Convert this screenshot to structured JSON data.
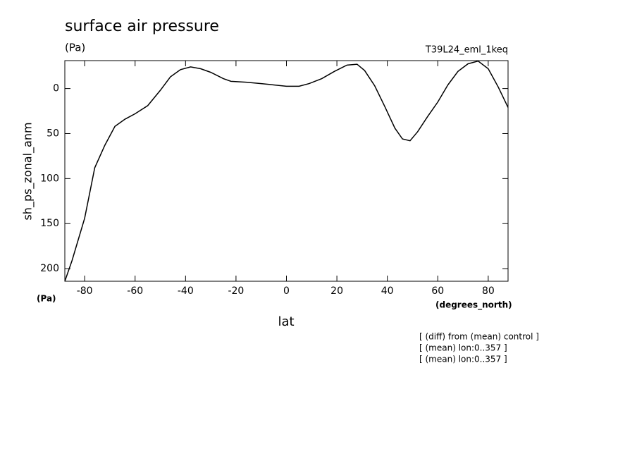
{
  "chart_data": {
    "type": "line",
    "title": "surface air pressure",
    "units_label": "(Pa)",
    "run_label": "T39L24_eml_1keq",
    "y_label": "sh_ps_zonal_anm",
    "y_units": "(Pa)",
    "x_units": "(degrees_north)",
    "x_label": "lat",
    "notes": [
      "[ (diff) from (mean) control ]",
      "[ (mean) lon:0..357 ]",
      "[ (mean) lon:0..357 ]"
    ],
    "x": [
      -87.86,
      -85,
      -80,
      -76,
      -72,
      -68,
      -64,
      -60,
      -55,
      -50,
      -46,
      -42,
      -38,
      -34,
      -30,
      -25,
      -22,
      -16,
      -10,
      -5,
      0,
      5,
      9,
      14,
      19,
      24,
      28,
      31,
      35,
      39,
      43,
      46,
      49,
      52,
      56,
      60,
      64,
      68,
      72,
      76,
      80,
      84,
      87.86
    ],
    "series": [
      {
        "name": "sh_ps_zonal_anm",
        "color": "#000000",
        "values": [
          214,
          191,
          144,
          88,
          63,
          42,
          34,
          28,
          19,
          2,
          -13,
          -21,
          -24,
          -22,
          -18,
          -11,
          -8,
          -7,
          -5.5,
          -4,
          -2.5,
          -2.5,
          -5.5,
          -11,
          -19,
          -26,
          -27,
          -20,
          -3,
          20,
          44,
          56,
          58,
          48,
          31,
          15,
          -4,
          -19,
          -27.5,
          -30.5,
          -22,
          -1.5,
          21
        ]
      }
    ],
    "xlim": [
      -87.86,
      87.86
    ],
    "ylim": [
      214,
      -31
    ],
    "xticks": [
      -80,
      -60,
      -40,
      -20,
      0,
      20,
      40,
      60,
      80
    ],
    "yticks": [
      0,
      50,
      100,
      150,
      200
    ]
  }
}
